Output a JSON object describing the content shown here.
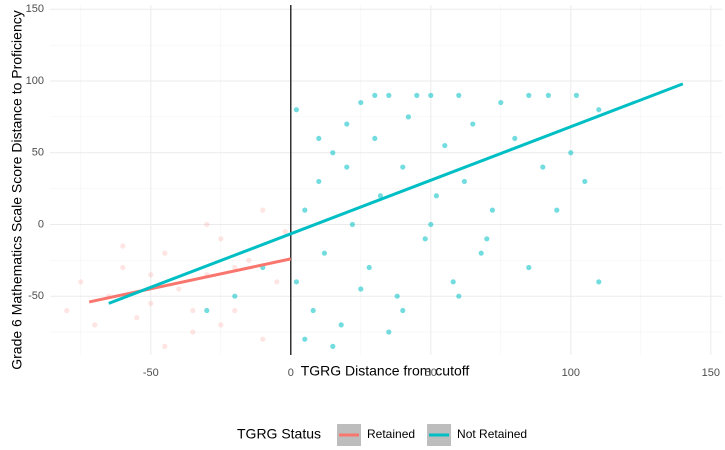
{
  "chart_data": {
    "type": "scatter",
    "x_label": "TGRG Distance from cutoff",
    "y_label": "Grade 6 Mathematics Scale Score Distance to Proficiency",
    "legend_title": "TGRG Status",
    "xlim": [
      -86,
      154
    ],
    "ylim": [
      -91,
      153
    ],
    "xticks": [
      -50,
      0,
      50,
      100,
      150
    ],
    "yticks": [
      -50,
      0,
      50,
      100,
      150
    ],
    "x_minor": [
      -75,
      -25,
      25,
      75,
      125
    ],
    "y_minor": [
      -75,
      -25,
      25,
      75,
      125
    ],
    "grid": true,
    "reference_line_x": 0,
    "legend": "bottom",
    "series": [
      {
        "name": "Retained",
        "color": "#F8766D",
        "opacity": 0.2,
        "x": [
          -80,
          -75,
          -70,
          -65,
          -60,
          -55,
          -50,
          -45,
          -40,
          -35,
          -30,
          -25,
          -20,
          -15,
          -10,
          -5,
          -2,
          -60,
          -45,
          -30,
          -20,
          -10,
          -35,
          -50,
          -25
        ],
        "y": [
          -60,
          -40,
          -70,
          -50,
          -30,
          -65,
          -55,
          -20,
          -45,
          -75,
          -35,
          -10,
          -60,
          -25,
          -80,
          -40,
          -5,
          -15,
          -85,
          0,
          -30,
          10,
          -60,
          -35,
          -70
        ],
        "fit_x": [
          -72,
          0
        ],
        "fit_y": [
          -54,
          -24
        ]
      },
      {
        "name": "Not Retained",
        "color": "#00BFC4",
        "opacity": 0.55,
        "x": [
          2,
          5,
          8,
          10,
          12,
          15,
          18,
          20,
          22,
          25,
          28,
          30,
          32,
          35,
          38,
          40,
          42,
          45,
          48,
          50,
          52,
          55,
          58,
          60,
          62,
          65,
          68,
          72,
          75,
          80,
          85,
          85,
          90,
          92,
          95,
          100,
          102,
          105,
          110,
          110,
          2,
          5,
          10,
          15,
          20,
          25,
          30,
          -10,
          -20,
          -30,
          35,
          40,
          50,
          60,
          70
        ],
        "y": [
          -40,
          10,
          -60,
          30,
          -20,
          50,
          -70,
          70,
          0,
          85,
          -30,
          60,
          20,
          90,
          -50,
          40,
          75,
          90,
          -10,
          90,
          20,
          55,
          -40,
          90,
          30,
          70,
          -20,
          10,
          85,
          60,
          90,
          -30,
          40,
          90,
          10,
          50,
          90,
          30,
          80,
          -40,
          80,
          -80,
          60,
          -85,
          40,
          -45,
          90,
          -30,
          -50,
          -60,
          -75,
          -60,
          0,
          -50,
          -10
        ],
        "fit_x": [
          -65,
          140
        ],
        "fit_y": [
          -55,
          98
        ]
      }
    ]
  }
}
